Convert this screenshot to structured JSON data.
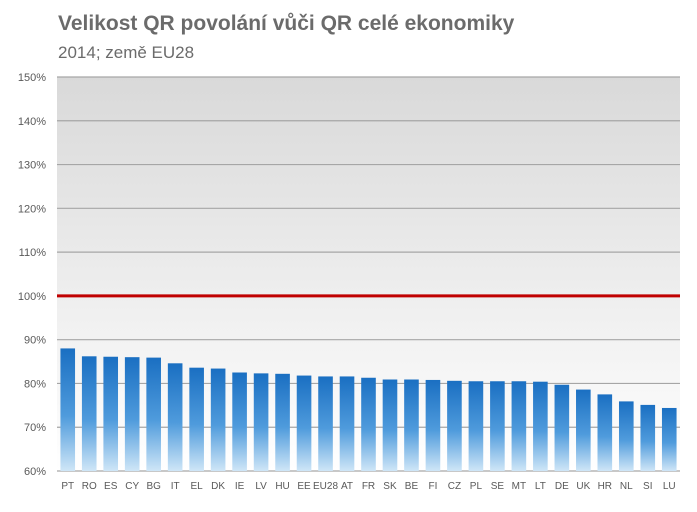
{
  "chart_data": {
    "type": "bar",
    "title": "Velikost QR povolání vůči QR celé ekonomiky",
    "subtitle": "2014; země EU28",
    "ylim": [
      60,
      150
    ],
    "yticks": [
      60,
      70,
      80,
      90,
      100,
      110,
      120,
      130,
      140,
      150
    ],
    "ytick_labels": [
      "60%",
      "70%",
      "80%",
      "90%",
      "100%",
      "110%",
      "120%",
      "130%",
      "140%",
      "150%"
    ],
    "reference_line": {
      "value": 100,
      "color": "#c00000"
    },
    "grid": true,
    "bar_color": "#1f78c8",
    "categories": [
      "PT",
      "RO",
      "ES",
      "CY",
      "BG",
      "IT",
      "EL",
      "DK",
      "IE",
      "LV",
      "HU",
      "EE",
      "EU28",
      "AT",
      "FR",
      "SK",
      "BE",
      "FI",
      "CZ",
      "PL",
      "SE",
      "MT",
      "LT",
      "DE",
      "UK",
      "HR",
      "NL",
      "SI",
      "LU"
    ],
    "values": [
      88.0,
      86.2,
      86.1,
      86.0,
      85.9,
      84.6,
      83.6,
      83.4,
      82.5,
      82.3,
      82.2,
      81.8,
      81.6,
      81.6,
      81.3,
      80.9,
      80.9,
      80.8,
      80.6,
      80.5,
      80.5,
      80.5,
      80.4,
      79.7,
      78.6,
      77.5,
      75.9,
      75.1,
      74.4
    ]
  }
}
